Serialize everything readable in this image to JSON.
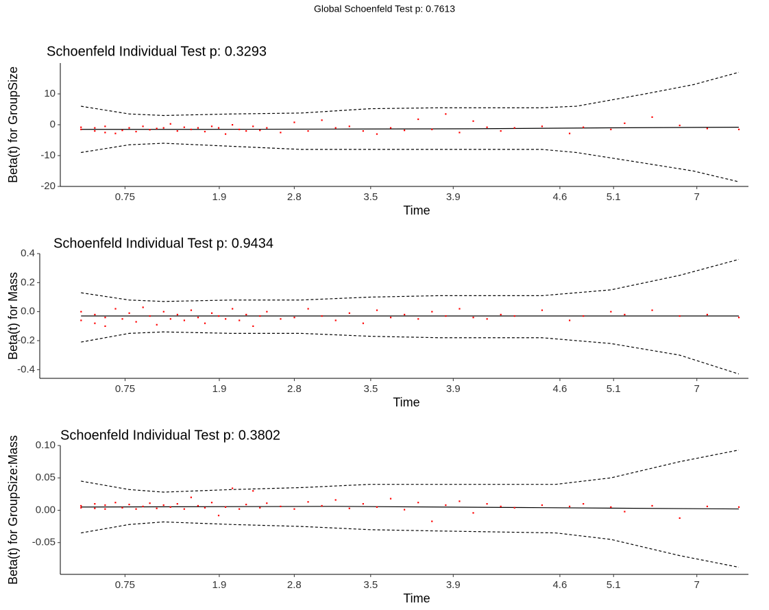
{
  "title": "Global Schoenfeld Test p: 0.7613",
  "chart_data": [
    {
      "type": "line",
      "title": "Schoenfeld Individual Test p: 0.3293",
      "xlabel": "Time",
      "ylabel": "Beta(t) for GroupSize",
      "xlim": [
        0,
        100
      ],
      "ylim": [
        -20,
        20
      ],
      "xticks": [
        {
          "value": 9.4,
          "label": "0.75"
        },
        {
          "value": 23.1,
          "label": "1.9"
        },
        {
          "value": 34,
          "label": "2.8"
        },
        {
          "value": 45.1,
          "label": "3.5"
        },
        {
          "value": 57.1,
          "label": "3.9"
        },
        {
          "value": 72.6,
          "label": "4.6"
        },
        {
          "value": 80.4,
          "label": "5.1"
        },
        {
          "value": 92.5,
          "label": "7"
        }
      ],
      "yticks": [
        -20,
        -10,
        0,
        10
      ],
      "series": [
        {
          "mode": "line",
          "dash": false,
          "color": "#000000",
          "x": [
            3,
            20,
            40,
            60,
            80,
            98.6
          ],
          "values": [
            -1.5,
            -1.5,
            -1.4,
            -1.3,
            -1.0,
            -0.8
          ]
        },
        {
          "mode": "line",
          "dash": true,
          "color": "#000000",
          "x": [
            3,
            10,
            15,
            25,
            35,
            45,
            55,
            70,
            75,
            85,
            92,
            98.6
          ],
          "values": [
            6,
            3.5,
            3,
            3.5,
            3.8,
            5.2,
            5.5,
            5.5,
            6,
            10,
            13,
            17
          ]
        },
        {
          "mode": "line",
          "dash": true,
          "color": "#000000",
          "x": [
            3,
            10,
            15,
            25,
            35,
            45,
            55,
            70,
            75,
            85,
            92,
            98.6
          ],
          "values": [
            -9,
            -6.5,
            -6,
            -7,
            -8,
            -8,
            -8,
            -8,
            -9,
            -12.5,
            -15,
            -18.5
          ]
        },
        {
          "mode": "points",
          "color": "#ff0000",
          "x": [
            3,
            3,
            5,
            5,
            6.5,
            6.5,
            8,
            9,
            10,
            11,
            12,
            13,
            14,
            15,
            16,
            17,
            18,
            19,
            20,
            21,
            22,
            23,
            24,
            25,
            26,
            27,
            28,
            29,
            30,
            32,
            34,
            36,
            38,
            40,
            42,
            44,
            46,
            48,
            50,
            52,
            54,
            56,
            58,
            60,
            62,
            64,
            66,
            70,
            74,
            76,
            80,
            82,
            86,
            90,
            94,
            98.6
          ],
          "values": [
            -1.5,
            -0.8,
            -2,
            -1,
            -2.5,
            -0.5,
            -2.8,
            -1.8,
            -1,
            -2.2,
            -0.5,
            -1.6,
            -1.2,
            -1,
            0.3,
            -2,
            -0.8,
            -1.5,
            -1,
            -2.2,
            -0.5,
            -1,
            -3,
            0,
            -1.5,
            -2,
            -0.5,
            -1.8,
            -1,
            -2.5,
            0.8,
            -2,
            1.5,
            -1,
            -0.5,
            -2,
            -3,
            -1,
            -1.8,
            1.8,
            -1.5,
            3.5,
            -2.5,
            1.2,
            -0.8,
            -2,
            -1,
            -0.5,
            -2.8,
            -0.8,
            -1.5,
            0.5,
            2.5,
            -0.2,
            -1.2,
            -1.5
          ]
        }
      ]
    },
    {
      "type": "line",
      "title": "Schoenfeld Individual Test p: 0.9434",
      "xlabel": "Time",
      "ylabel": "Beta(t) for Mass",
      "xlim": [
        -3,
        100
      ],
      "ylim": [
        -0.46,
        0.4
      ],
      "xticks": [
        {
          "value": 9.4,
          "label": "0.75"
        },
        {
          "value": 23.1,
          "label": "1.9"
        },
        {
          "value": 34,
          "label": "2.8"
        },
        {
          "value": 45.1,
          "label": "3.5"
        },
        {
          "value": 57.1,
          "label": "3.9"
        },
        {
          "value": 72.6,
          "label": "4.6"
        },
        {
          "value": 80.4,
          "label": "5.1"
        },
        {
          "value": 92.5,
          "label": "7"
        }
      ],
      "yticks": [
        -0.4,
        -0.2,
        {
          "value": 0,
          "label": "0.0"
        },
        0.2,
        0.4
      ],
      "series": [
        {
          "mode": "line",
          "dash": false,
          "color": "#000000",
          "x": [
            3,
            50,
            98.6
          ],
          "values": [
            -0.03,
            -0.03,
            -0.03
          ]
        },
        {
          "mode": "line",
          "dash": true,
          "color": "#000000",
          "x": [
            3,
            10,
            15,
            25,
            35,
            45,
            55,
            70,
            75,
            80,
            90,
            98.6
          ],
          "values": [
            0.13,
            0.08,
            0.07,
            0.08,
            0.08,
            0.1,
            0.11,
            0.11,
            0.13,
            0.15,
            0.25,
            0.36
          ]
        },
        {
          "mode": "line",
          "dash": true,
          "color": "#000000",
          "x": [
            3,
            10,
            15,
            25,
            35,
            45,
            55,
            70,
            75,
            80,
            90,
            98.6
          ],
          "values": [
            -0.21,
            -0.15,
            -0.14,
            -0.15,
            -0.15,
            -0.17,
            -0.18,
            -0.18,
            -0.2,
            -0.22,
            -0.3,
            -0.43
          ]
        },
        {
          "mode": "points",
          "color": "#ff0000",
          "x": [
            3,
            3,
            5,
            5,
            6.5,
            6.5,
            8,
            9,
            10,
            11,
            12,
            13,
            14,
            15,
            16,
            17,
            18,
            19,
            20,
            21,
            22,
            23,
            24,
            25,
            26,
            27,
            28,
            29,
            30,
            32,
            34,
            36,
            38,
            40,
            42,
            44,
            46,
            48,
            50,
            52,
            54,
            56,
            58,
            60,
            62,
            64,
            66,
            70,
            74,
            76,
            80,
            82,
            86,
            90,
            94,
            98.6
          ],
          "values": [
            0.0,
            -0.06,
            -0.02,
            -0.08,
            -0.1,
            -0.04,
            0.02,
            -0.05,
            -0.01,
            -0.07,
            0.03,
            -0.03,
            -0.09,
            0.0,
            -0.05,
            -0.02,
            -0.06,
            0.01,
            -0.04,
            -0.08,
            -0.01,
            -0.03,
            -0.05,
            0.02,
            -0.06,
            -0.02,
            -0.1,
            -0.03,
            0.0,
            -0.05,
            -0.04,
            0.02,
            -0.03,
            -0.06,
            -0.01,
            -0.08,
            0.01,
            -0.04,
            -0.02,
            -0.05,
            0.0,
            -0.03,
            0.02,
            -0.04,
            -0.05,
            -0.02,
            -0.03,
            0.01,
            -0.06,
            -0.03,
            0.0,
            -0.02,
            0.01,
            -0.03,
            -0.02,
            -0.04
          ]
        }
      ]
    },
    {
      "type": "line",
      "title": "Schoenfeld Individual Test p: 0.3802",
      "xlabel": "Time",
      "ylabel": "Beta(t) for GroupSize:Mass",
      "xlim": [
        0,
        100
      ],
      "ylim": [
        -0.099,
        0.1
      ],
      "xticks": [
        {
          "value": 9.4,
          "label": "0.75"
        },
        {
          "value": 23.1,
          "label": "1.9"
        },
        {
          "value": 34,
          "label": "2.8"
        },
        {
          "value": 45.1,
          "label": "3.5"
        },
        {
          "value": 57.1,
          "label": "3.9"
        },
        {
          "value": 72.6,
          "label": "4.6"
        },
        {
          "value": 80.4,
          "label": "5.1"
        },
        {
          "value": 92.5,
          "label": "7"
        }
      ],
      "yticks": [
        -0.05,
        {
          "value": 0,
          "label": "0.00"
        },
        0.05,
        {
          "value": 0.1,
          "label": "0.10"
        }
      ],
      "series": [
        {
          "mode": "line",
          "dash": false,
          "color": "#000000",
          "x": [
            3,
            40,
            70,
            98.6
          ],
          "values": [
            0.005,
            0.006,
            0.004,
            0.002
          ]
        },
        {
          "mode": "line",
          "dash": true,
          "color": "#000000",
          "x": [
            3,
            10,
            15,
            25,
            35,
            45,
            55,
            72,
            80,
            90,
            98.6
          ],
          "values": [
            0.045,
            0.032,
            0.028,
            0.032,
            0.035,
            0.04,
            0.04,
            0.04,
            0.05,
            0.075,
            0.093
          ]
        },
        {
          "mode": "line",
          "dash": true,
          "color": "#000000",
          "x": [
            3,
            10,
            15,
            25,
            35,
            45,
            55,
            72,
            80,
            90,
            98.6
          ],
          "values": [
            -0.035,
            -0.022,
            -0.018,
            -0.022,
            -0.025,
            -0.03,
            -0.032,
            -0.035,
            -0.045,
            -0.07,
            -0.088
          ]
        },
        {
          "mode": "points",
          "color": "#ff0000",
          "x": [
            3,
            3,
            5,
            5,
            6.5,
            6.5,
            8,
            9,
            10,
            11,
            12,
            13,
            14,
            15,
            16,
            17,
            18,
            19,
            20,
            21,
            22,
            23,
            24,
            25,
            26,
            27,
            28,
            29,
            30,
            32,
            34,
            36,
            38,
            40,
            42,
            44,
            46,
            48,
            50,
            52,
            54,
            56,
            58,
            60,
            62,
            64,
            66,
            70,
            74,
            76,
            80,
            82,
            86,
            90,
            94,
            98.6
          ],
          "values": [
            0.004,
            0.007,
            0.003,
            0.01,
            0.002,
            0.008,
            0.012,
            0.004,
            0.009,
            0.002,
            0.006,
            0.011,
            0.003,
            0.008,
            0.005,
            0.01,
            0.002,
            0.02,
            0.007,
            0.004,
            0.012,
            -0.008,
            0.005,
            0.034,
            0.002,
            0.009,
            0.03,
            0.004,
            0.011,
            0.006,
            0.002,
            0.013,
            0.007,
            0.016,
            0.003,
            0.01,
            0.005,
            0.018,
            0.001,
            0.012,
            -0.017,
            0.008,
            0.014,
            -0.004,
            0.01,
            0.006,
            0.004,
            0.008,
            0.006,
            0.01,
            0.005,
            -0.002,
            0.007,
            -0.012,
            0.006,
            0.005
          ]
        }
      ]
    }
  ]
}
